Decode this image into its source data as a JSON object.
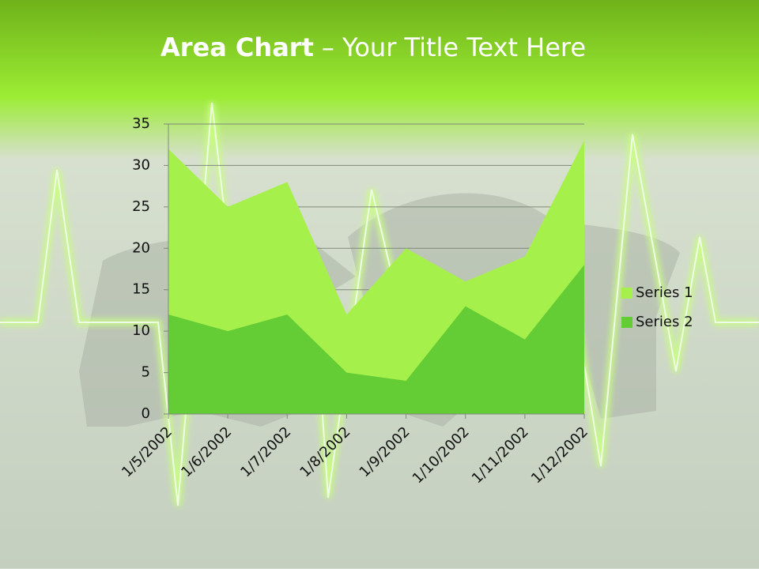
{
  "chart_data": {
    "type": "area",
    "title": {
      "bold": "Area Chart",
      "rest": "– Your Title Text Here"
    },
    "categories": [
      "1/5/2002",
      "1/6/2002",
      "1/7/2002",
      "1/8/2002",
      "1/9/2002",
      "1/10/2002",
      "1/11/2002",
      "1/12/2002"
    ],
    "series": [
      {
        "name": "Series 1",
        "color": "#a6f04c",
        "values": [
          32,
          25,
          28,
          12,
          20,
          16,
          19,
          33
        ]
      },
      {
        "name": "Series 2",
        "color": "#64cc34",
        "values": [
          12,
          10,
          12,
          5,
          4,
          13,
          9,
          18
        ]
      }
    ],
    "ylim": [
      0,
      35
    ],
    "yticks": [
      0,
      5,
      10,
      15,
      20,
      25,
      30,
      35
    ],
    "grid": true,
    "legend": "right"
  }
}
